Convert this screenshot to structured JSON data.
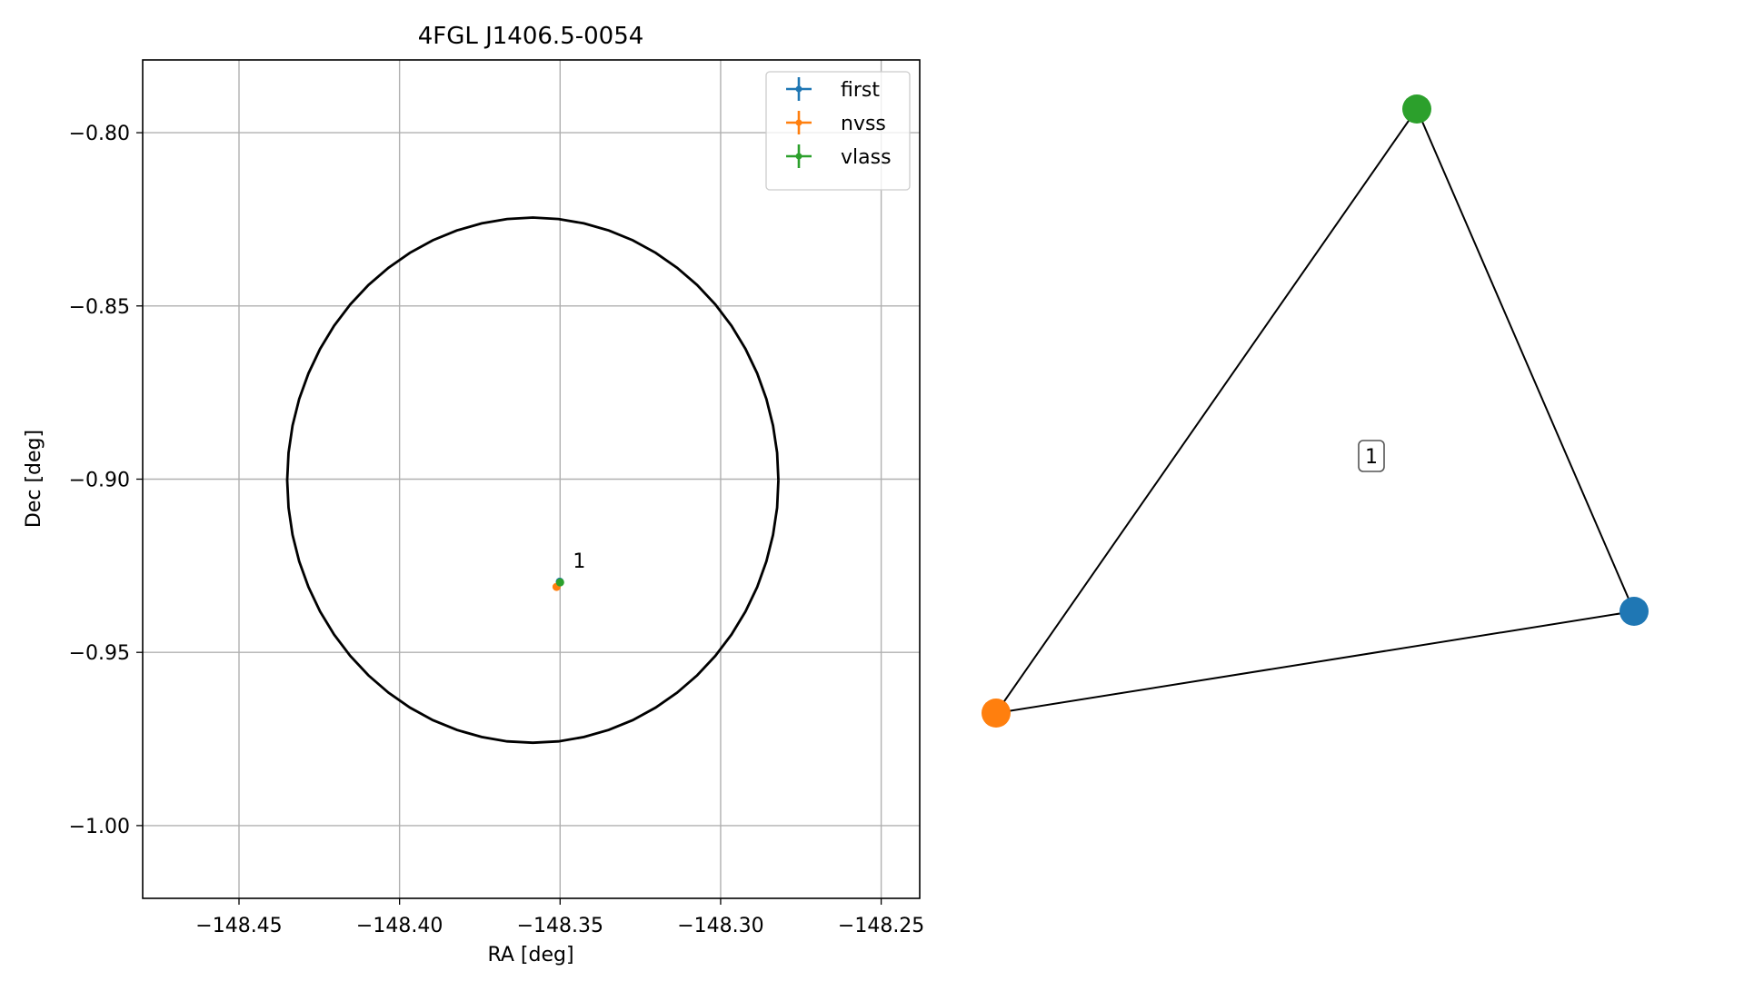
{
  "chart_data": [
    {
      "type": "scatter",
      "title": "4FGL J1406.5-0054",
      "xlabel": "RA [deg]",
      "ylabel": "Dec [deg]",
      "xlim": [
        -148.48,
        -148.238
      ],
      "ylim": [
        -1.021,
        -0.779
      ],
      "xticks": [
        -148.45,
        -148.4,
        -148.35,
        -148.3,
        -148.25
      ],
      "xtick_labels": [
        "−148.45",
        "−148.40",
        "−148.35",
        "−148.30",
        "−148.25"
      ],
      "yticks": [
        -0.8,
        -0.85,
        -0.9,
        -0.95,
        -1.0
      ],
      "ytick_labels": [
        "−0.80",
        "−0.85",
        "−0.90",
        "−0.95",
        "−1.00"
      ],
      "grid": true,
      "legend_position": "top-right",
      "series": [
        {
          "name": "first",
          "color": "#1f77b4",
          "x": [
            -148.3501
          ],
          "y": [
            -0.9296
          ]
        },
        {
          "name": "nvss",
          "color": "#ff7f0e",
          "x": [
            -148.3511
          ],
          "y": [
            -0.9311
          ]
        },
        {
          "name": "vlass",
          "color": "#2ca02c",
          "x": [
            -148.35
          ],
          "y": [
            -0.9298
          ]
        }
      ],
      "annotations": [
        {
          "text": "1",
          "x": -148.346,
          "y": -0.9255
        }
      ],
      "ellipse": {
        "center": [
          -148.3585,
          -0.9003
        ],
        "semi_axis_ra": 0.0765,
        "semi_axis_dec": 0.0758,
        "color": "#000000"
      }
    },
    {
      "type": "diagram",
      "nodes": [
        {
          "id": "first",
          "color": "#1f77b4"
        },
        {
          "id": "nvss",
          "color": "#ff7f0e"
        },
        {
          "id": "vlass",
          "color": "#2ca02c"
        }
      ],
      "edges": [
        [
          "first",
          "nvss"
        ],
        [
          "nvss",
          "vlass"
        ],
        [
          "vlass",
          "first"
        ]
      ],
      "label": "1"
    }
  ]
}
